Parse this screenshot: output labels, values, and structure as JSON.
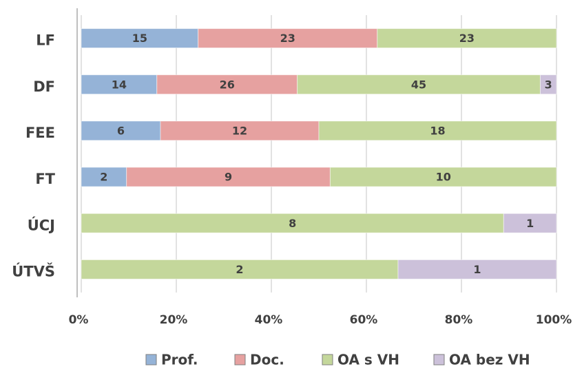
{
  "chart_data": {
    "type": "bar",
    "orientation": "horizontal",
    "stacked_percent": true,
    "categories": [
      "LF",
      "DF",
      "FEE",
      "FT",
      "ÚCJ",
      "ÚTVŠ"
    ],
    "series": [
      {
        "name": "Prof.",
        "color": "#95b3d7",
        "values": [
          15,
          14,
          6,
          2,
          null,
          null
        ]
      },
      {
        "name": "Doc.",
        "color": "#e6a1a0",
        "values": [
          23,
          26,
          12,
          9,
          null,
          null
        ]
      },
      {
        "name": "OA s VH",
        "color": "#c4d79b",
        "values": [
          23,
          45,
          18,
          10,
          8,
          2
        ]
      },
      {
        "name": "OA bez VH",
        "color": "#ccc1da",
        "values": [
          null,
          3,
          null,
          null,
          1,
          1
        ]
      }
    ],
    "xlim": [
      0,
      100
    ],
    "xticks": [
      {
        "value": 0,
        "label": "0%"
      },
      {
        "value": 20,
        "label": "20%"
      },
      {
        "value": 40,
        "label": "40%"
      },
      {
        "value": 60,
        "label": "60%"
      },
      {
        "value": 80,
        "label": "80%"
      },
      {
        "value": 100,
        "label": "100%"
      }
    ],
    "grid": true,
    "legend": "bottom"
  }
}
